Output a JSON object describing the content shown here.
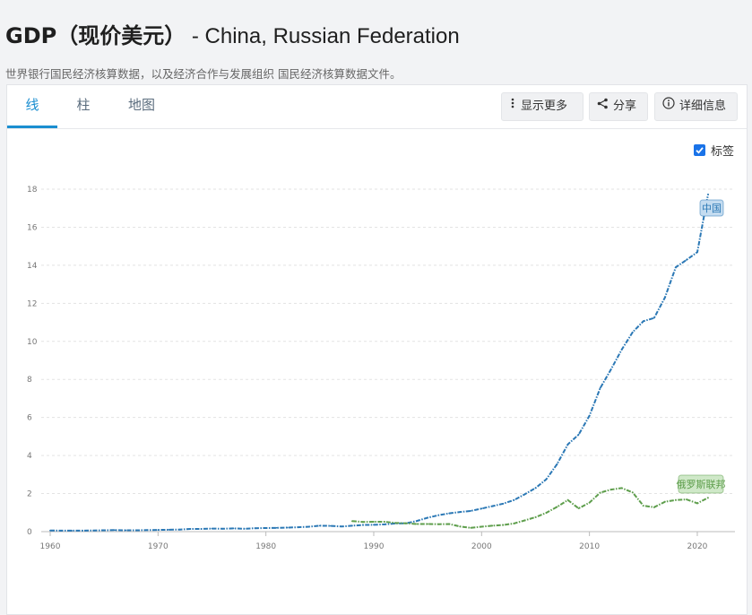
{
  "page": {
    "title_main": "GDP（现价美元）",
    "title_sub": " - China, Russian Federation",
    "subtitle": "世界银行国民经济核算数据，以及经济合作与发展组织 国民经济核算数据文件。"
  },
  "tabs": [
    {
      "label": "线",
      "active": true
    },
    {
      "label": "柱",
      "active": false
    },
    {
      "label": "地图",
      "active": false
    }
  ],
  "toolbar": {
    "more_label": "显示更多",
    "share_label": "分享",
    "details_label": "详细信息"
  },
  "labels_toggle": {
    "label": "标签",
    "checked": true
  },
  "colors": {
    "china": "#2b78b5",
    "russia": "#5e9e4c",
    "china_label_bg": "#c4dcf0",
    "russia_label_bg": "#cfe8c8",
    "accent": "#1a8ed0"
  },
  "chart_data": {
    "type": "line",
    "xlim": [
      1960,
      2021
    ],
    "ylim": [
      0,
      18
    ],
    "x_ticks": [
      1960,
      1970,
      1980,
      1990,
      2000,
      2010,
      2020
    ],
    "y_ticks": [
      0,
      2,
      4,
      6,
      8,
      10,
      12,
      14,
      16,
      18
    ],
    "grid": true,
    "series": [
      {
        "name": "中国",
        "color": "#2b78b5",
        "x": [
          1960,
          1961,
          1962,
          1963,
          1964,
          1965,
          1966,
          1967,
          1968,
          1969,
          1970,
          1971,
          1972,
          1973,
          1974,
          1975,
          1976,
          1977,
          1978,
          1979,
          1980,
          1981,
          1982,
          1983,
          1984,
          1985,
          1986,
          1987,
          1988,
          1989,
          1990,
          1991,
          1992,
          1993,
          1994,
          1995,
          1996,
          1997,
          1998,
          1999,
          2000,
          2001,
          2002,
          2003,
          2004,
          2005,
          2006,
          2007,
          2008,
          2009,
          2010,
          2011,
          2012,
          2013,
          2014,
          2015,
          2016,
          2017,
          2018,
          2019,
          2020,
          2021
        ],
        "values": [
          0.06,
          0.05,
          0.05,
          0.05,
          0.06,
          0.07,
          0.08,
          0.07,
          0.07,
          0.08,
          0.09,
          0.1,
          0.11,
          0.14,
          0.14,
          0.16,
          0.15,
          0.17,
          0.15,
          0.18,
          0.19,
          0.2,
          0.21,
          0.23,
          0.26,
          0.31,
          0.3,
          0.27,
          0.31,
          0.35,
          0.36,
          0.38,
          0.43,
          0.44,
          0.56,
          0.73,
          0.86,
          0.96,
          1.03,
          1.09,
          1.21,
          1.34,
          1.47,
          1.66,
          1.96,
          2.29,
          2.75,
          3.55,
          4.59,
          5.1,
          6.09,
          7.55,
          8.53,
          9.57,
          10.48,
          11.06,
          11.23,
          12.31,
          13.89,
          14.28,
          14.69,
          17.73
        ]
      },
      {
        "name": "俄罗斯联邦",
        "color": "#5e9e4c",
        "x": [
          1988,
          1989,
          1990,
          1991,
          1992,
          1993,
          1994,
          1995,
          1996,
          1997,
          1998,
          1999,
          2000,
          2001,
          2002,
          2003,
          2004,
          2005,
          2006,
          2007,
          2008,
          2009,
          2010,
          2011,
          2012,
          2013,
          2014,
          2015,
          2016,
          2017,
          2018,
          2019,
          2020,
          2021
        ],
        "values": [
          0.55,
          0.51,
          0.52,
          0.52,
          0.46,
          0.44,
          0.4,
          0.4,
          0.39,
          0.4,
          0.27,
          0.2,
          0.26,
          0.31,
          0.35,
          0.43,
          0.59,
          0.76,
          0.99,
          1.3,
          1.66,
          1.22,
          1.52,
          2.05,
          2.21,
          2.29,
          2.06,
          1.36,
          1.28,
          1.57,
          1.66,
          1.69,
          1.49,
          1.78
        ]
      }
    ]
  }
}
